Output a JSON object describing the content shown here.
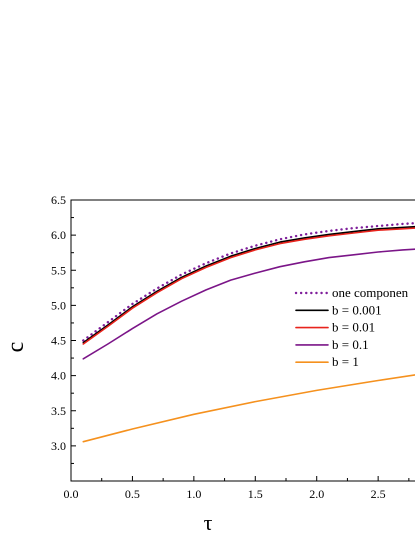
{
  "chart_data": {
    "type": "line",
    "title": "",
    "xlabel": "τ",
    "ylabel": "c",
    "xlim": [
      0.0,
      2.8
    ],
    "ylim": [
      2.5,
      6.5
    ],
    "xticks": [
      {
        "value": 0.0,
        "label": "0.0"
      },
      {
        "value": 0.5,
        "label": "0.5"
      },
      {
        "value": 1.0,
        "label": "1.0"
      },
      {
        "value": 1.5,
        "label": "1.5"
      },
      {
        "value": 2.0,
        "label": "2.0"
      },
      {
        "value": 2.5,
        "label": "2.5"
      }
    ],
    "yticks": [
      {
        "value": 3.0,
        "label": "3.0"
      },
      {
        "value": 3.5,
        "label": "3.5"
      },
      {
        "value": 4.0,
        "label": "4.0"
      },
      {
        "value": 4.5,
        "label": "4.5"
      },
      {
        "value": 5.0,
        "label": "5.0"
      },
      {
        "value": 5.5,
        "label": "5.5"
      },
      {
        "value": 6.0,
        "label": "6.0"
      },
      {
        "value": 6.5,
        "label": "6.5"
      }
    ],
    "grid": false,
    "legend_position": "right",
    "series": [
      {
        "name": "one componen",
        "color": "#7f1f9b",
        "style": "dotted",
        "x": [
          0.1,
          0.3,
          0.5,
          0.7,
          0.9,
          1.1,
          1.3,
          1.5,
          1.7,
          1.9,
          2.1,
          2.3,
          2.5,
          2.7,
          2.8
        ],
        "y": [
          4.5,
          4.76,
          5.02,
          5.24,
          5.44,
          5.6,
          5.74,
          5.85,
          5.94,
          6.01,
          6.06,
          6.1,
          6.13,
          6.16,
          6.17
        ]
      },
      {
        "name": "b = 0.001",
        "color": "#000000",
        "style": "solid",
        "x": [
          0.1,
          0.3,
          0.5,
          0.7,
          0.9,
          1.1,
          1.3,
          1.5,
          1.7,
          1.9,
          2.1,
          2.3,
          2.5,
          2.7,
          2.8
        ],
        "y": [
          4.47,
          4.72,
          4.98,
          5.2,
          5.4,
          5.56,
          5.7,
          5.81,
          5.9,
          5.96,
          6.01,
          6.05,
          6.09,
          6.11,
          6.12
        ]
      },
      {
        "name": "b = 0.01",
        "color": "#e8231c",
        "style": "solid",
        "x": [
          0.1,
          0.3,
          0.5,
          0.7,
          0.9,
          1.1,
          1.3,
          1.5,
          1.7,
          1.9,
          2.1,
          2.3,
          2.5,
          2.7,
          2.8
        ],
        "y": [
          4.45,
          4.7,
          4.96,
          5.18,
          5.38,
          5.54,
          5.68,
          5.79,
          5.88,
          5.94,
          5.99,
          6.03,
          6.07,
          6.09,
          6.1
        ]
      },
      {
        "name": "b = 0.1",
        "color": "#7b1588",
        "style": "solid",
        "x": [
          0.1,
          0.3,
          0.5,
          0.7,
          0.9,
          1.1,
          1.3,
          1.5,
          1.7,
          1.9,
          2.1,
          2.3,
          2.5,
          2.7,
          2.8
        ],
        "y": [
          4.24,
          4.45,
          4.67,
          4.88,
          5.06,
          5.22,
          5.36,
          5.46,
          5.55,
          5.62,
          5.68,
          5.72,
          5.76,
          5.79,
          5.8
        ]
      },
      {
        "name": "b = 1",
        "color": "#f5911e",
        "style": "solid",
        "x": [
          0.1,
          0.5,
          1.0,
          1.5,
          2.0,
          2.5,
          2.8
        ],
        "y": [
          3.06,
          3.24,
          3.45,
          3.63,
          3.79,
          3.93,
          4.01
        ]
      }
    ]
  }
}
